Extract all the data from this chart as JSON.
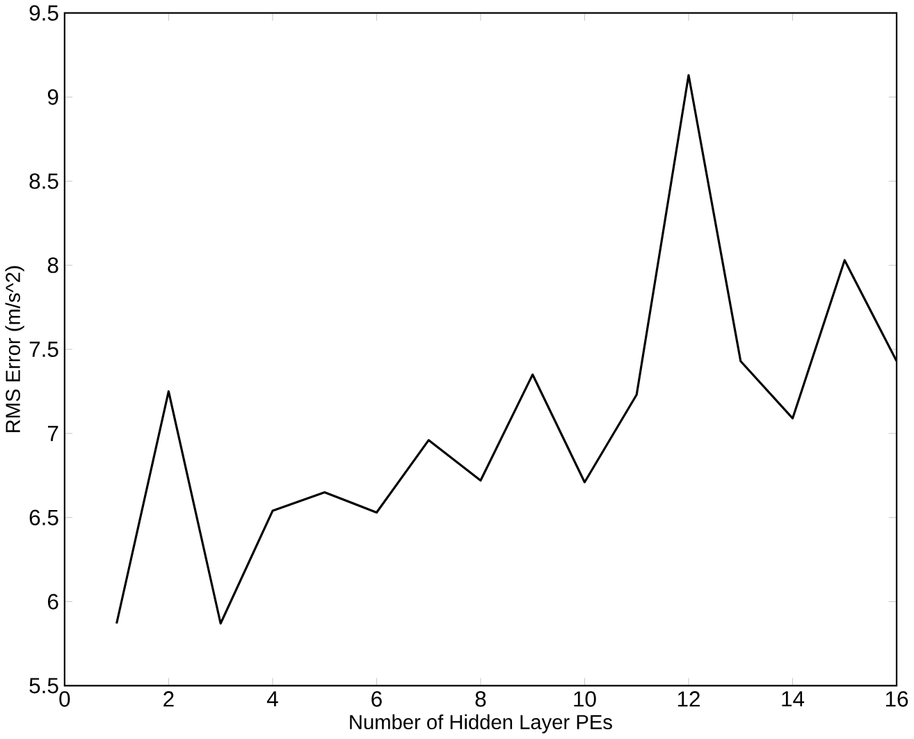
{
  "chart_data": {
    "type": "line",
    "xlabel": "Number of Hidden Layer PEs",
    "ylabel": "RMS Error (m/s^2)",
    "x": [
      1,
      2,
      3,
      4,
      5,
      6,
      7,
      8,
      9,
      10,
      11,
      12,
      13,
      14,
      15,
      16
    ],
    "series": [
      {
        "color": "#000000",
        "values": [
          5.87,
          7.25,
          5.87,
          6.54,
          6.65,
          6.53,
          6.96,
          6.72,
          7.35,
          6.71,
          7.23,
          9.13,
          7.43,
          7.09,
          8.03,
          7.43
        ]
      }
    ],
    "xlim": [
      0,
      16
    ],
    "ylim": [
      5.5,
      9.5
    ],
    "xticks": [
      0,
      2,
      4,
      6,
      8,
      10,
      12,
      14,
      16
    ],
    "yticks": [
      5.5,
      6,
      6.5,
      7,
      7.5,
      8,
      8.5,
      9,
      9.5
    ],
    "grid": false,
    "marker": "none",
    "line_style": "solid"
  }
}
